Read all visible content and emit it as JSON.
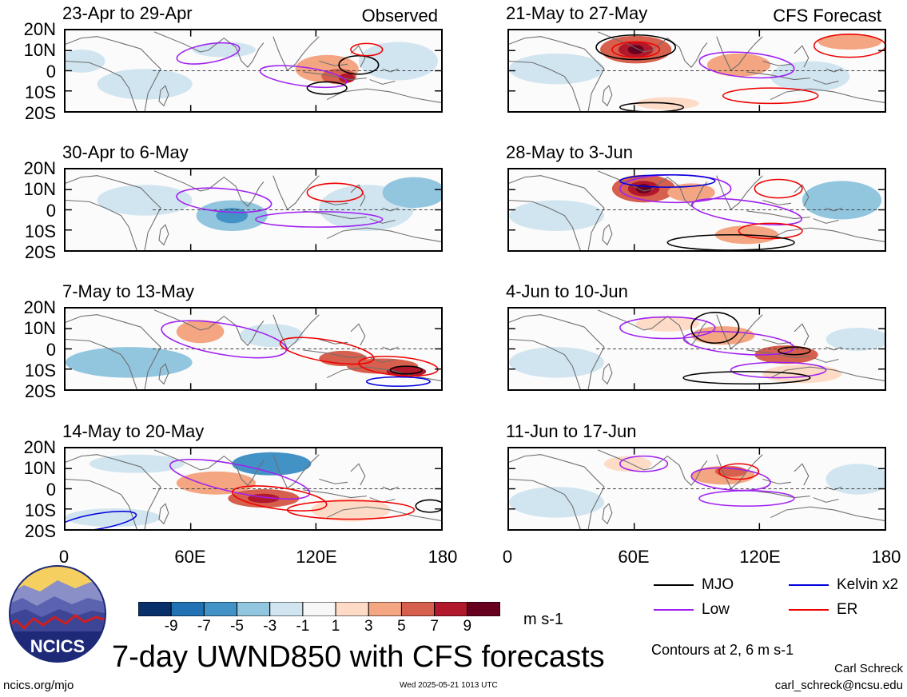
{
  "figure": {
    "title": "7-day UWND850 with CFS forecasts",
    "units": "m s-1",
    "contours_note": "Contours at 2, 6 m s-1",
    "author": "Carl Schreck",
    "email": "carl_schreck@ncsu.edu",
    "site": "ncics.org/mjo",
    "timestamp": "Wed 2025-05-21 1013 UTC",
    "logo_text": "NCICS"
  },
  "panels": [
    {
      "title": "23-Apr to 29-Apr",
      "tag": "Observed"
    },
    {
      "title": "30-Apr to 6-May",
      "tag": ""
    },
    {
      "title": "7-May to 13-May",
      "tag": ""
    },
    {
      "title": "14-May to 20-May",
      "tag": ""
    },
    {
      "title": "21-May to 27-May",
      "tag": "CFS Forecast"
    },
    {
      "title": "28-May to 3-Jun",
      "tag": ""
    },
    {
      "title": "4-Jun to 10-Jun",
      "tag": ""
    },
    {
      "title": "11-Jun to 17-Jun",
      "tag": ""
    }
  ],
  "axes": {
    "lat_labels": [
      "20N",
      "10N",
      "0",
      "10S",
      "20S"
    ],
    "lon_labels": [
      "0",
      "60E",
      "120E",
      "180"
    ]
  },
  "colorbar": {
    "labels": [
      "-9",
      "-7",
      "-5",
      "-3",
      "-1",
      "1",
      "3",
      "5",
      "7",
      "9"
    ],
    "colors": [
      "#08306b",
      "#2171b5",
      "#4292c6",
      "#92c5de",
      "#d1e5f0",
      "#f7f7f7",
      "#fddbc7",
      "#f4a582",
      "#d6604d",
      "#b2182b",
      "#67001f"
    ]
  },
  "legend": [
    {
      "label": "MJO",
      "color": "#000000"
    },
    {
      "label": "Kelvin x2",
      "color": "#0000dd"
    },
    {
      "label": "Low",
      "color": "#a020f0"
    },
    {
      "label": "ER",
      "color": "#ee0000"
    }
  ]
}
